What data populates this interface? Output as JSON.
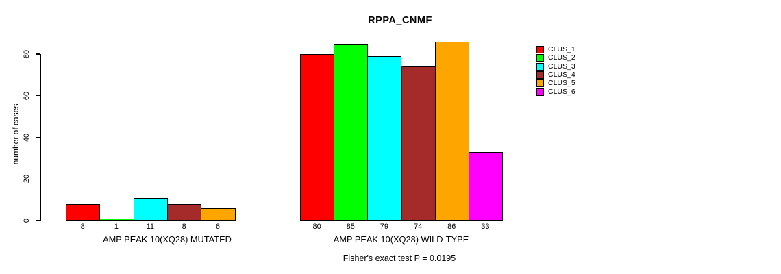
{
  "chart_data": {
    "type": "bar",
    "title": "RPPA_CNMF",
    "ylabel": "number of cases",
    "ylim": [
      0,
      88
    ],
    "yticks": [
      0,
      20,
      40,
      60,
      80
    ],
    "grid": false,
    "legend_position": "right",
    "legend": [
      {
        "label": "CLUS_1",
        "color": "#FF0000"
      },
      {
        "label": "CLUS_2",
        "color": "#00FF00"
      },
      {
        "label": "CLUS_3",
        "color": "#00FFFF"
      },
      {
        "label": "CLUS_4",
        "color": "#A52A2A"
      },
      {
        "label": "CLUS_5",
        "color": "#FFA500"
      },
      {
        "label": "CLUS_6",
        "color": "#FF00FF"
      }
    ],
    "groups": [
      {
        "label": "AMP PEAK 10(XQ28) MUTATED",
        "bars": [
          {
            "cluster": "CLUS_1",
            "value": 8
          },
          {
            "cluster": "CLUS_2",
            "value": 1
          },
          {
            "cluster": "CLUS_3",
            "value": 11
          },
          {
            "cluster": "CLUS_4",
            "value": 8
          },
          {
            "cluster": "CLUS_5",
            "value": 6
          }
        ]
      },
      {
        "label": "AMP PEAK 10(XQ28) WILD-TYPE",
        "bars": [
          {
            "cluster": "CLUS_1",
            "value": 80
          },
          {
            "cluster": "CLUS_2",
            "value": 85
          },
          {
            "cluster": "CLUS_3",
            "value": 79
          },
          {
            "cluster": "CLUS_4",
            "value": 74
          },
          {
            "cluster": "CLUS_5",
            "value": 86
          },
          {
            "cluster": "CLUS_6",
            "value": 33
          }
        ]
      }
    ],
    "annotation": "Fisher's exact test P = 0.0195"
  }
}
